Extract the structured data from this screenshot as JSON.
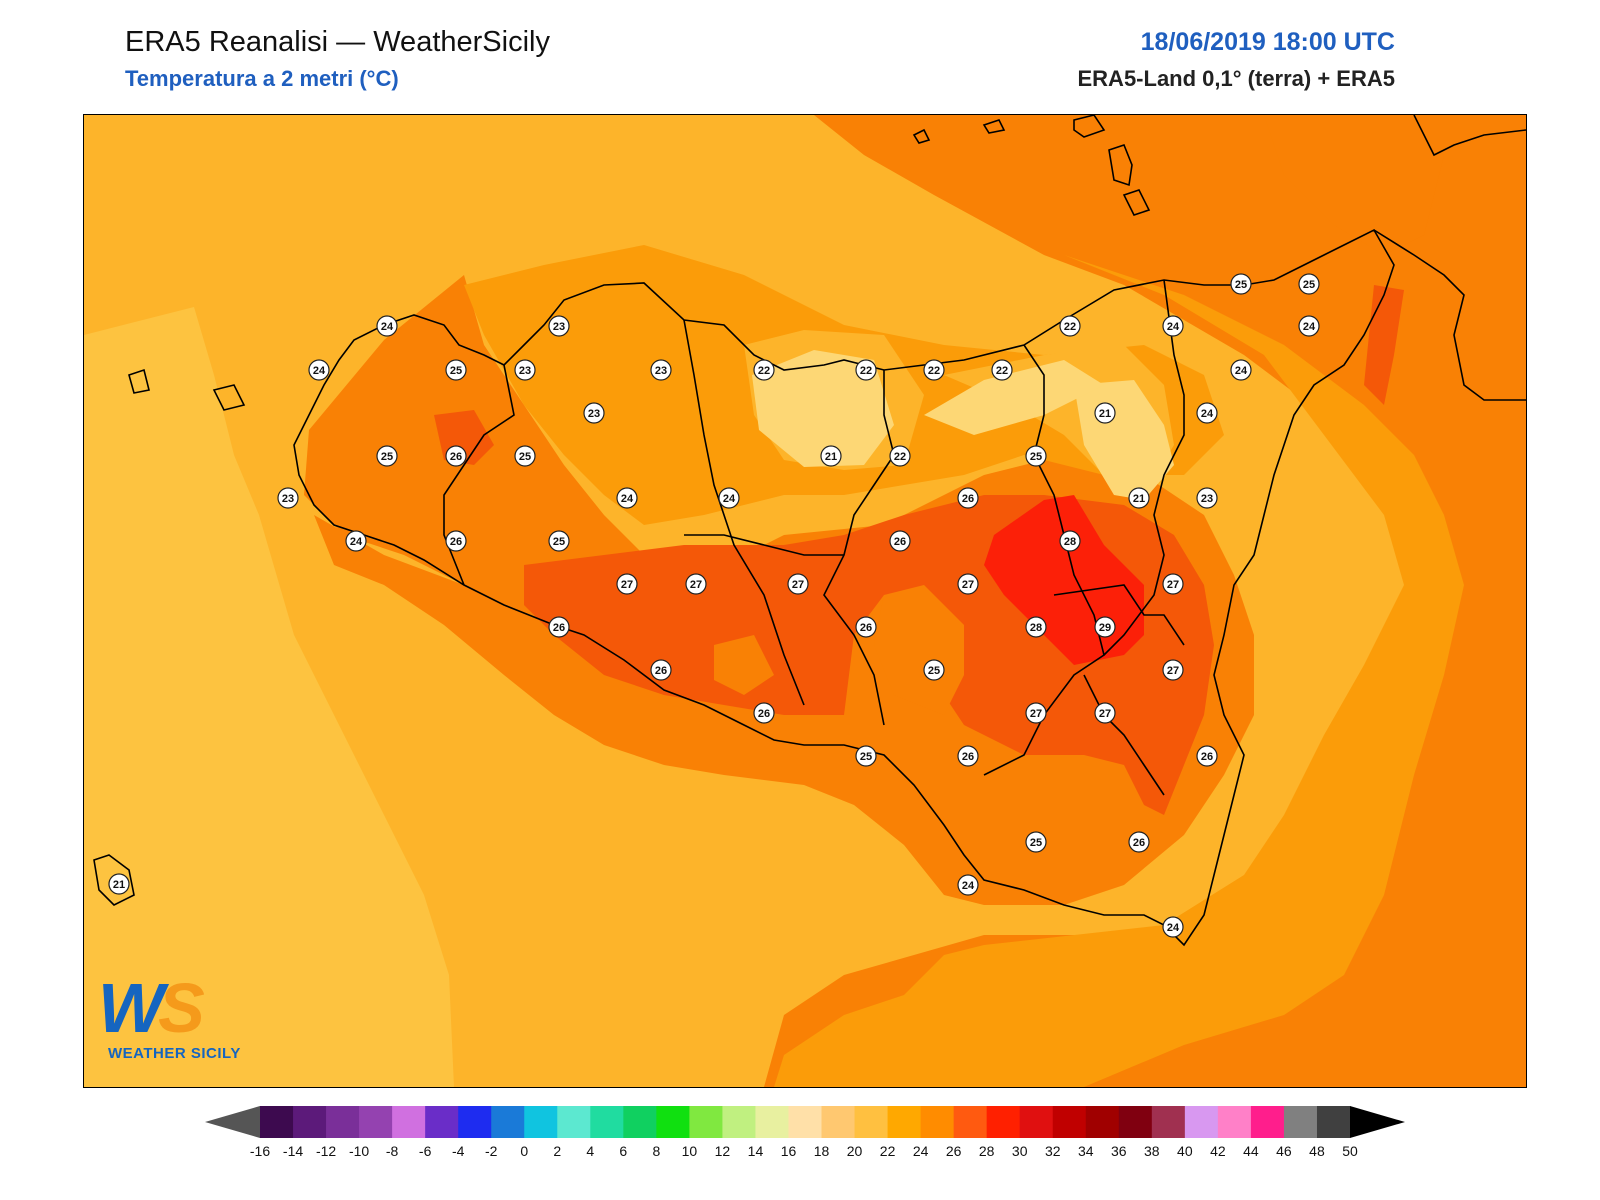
{
  "header": {
    "title": "ERA5 Reanalisi — WeatherSicily",
    "subtitle": "Temperatura a 2 metri (°C)",
    "datetime": "18/06/2019 18:00 UTC",
    "source": "ERA5-Land 0,1° (terra) + ERA5"
  },
  "logo": {
    "ws_w": "W",
    "ws_s": "S",
    "brand": "WEATHER SICILY"
  },
  "colorbar": {
    "ticks": [
      "-16",
      "-14",
      "-12",
      "-10",
      "-8",
      "-6",
      "-4",
      "-2",
      "0",
      "2",
      "4",
      "6",
      "8",
      "10",
      "12",
      "14",
      "16",
      "18",
      "20",
      "22",
      "24",
      "26",
      "28",
      "30",
      "32",
      "34",
      "36",
      "38",
      "40",
      "42",
      "44",
      "46",
      "48",
      "50"
    ],
    "colors": [
      "#3d0a4f",
      "#5c1a7a",
      "#7a2f99",
      "#9442b0",
      "#d070e0",
      "#6a2dc8",
      "#1e2cf0",
      "#1a7ad8",
      "#10c4e0",
      "#5ce8d0",
      "#20dca0",
      "#10d060",
      "#10e010",
      "#80e840",
      "#c0f080",
      "#e8f0a0",
      "#ffe0a8",
      "#ffc870",
      "#ffc040",
      "#ffa800",
      "#ff8c00",
      "#ff5a10",
      "#ff2000",
      "#e01010",
      "#c00000",
      "#a00000",
      "#800010",
      "#a03050",
      "#d898f0",
      "#ff80c8",
      "#ff1e8c",
      "#808080",
      "#404040"
    ],
    "under_color": "#555555",
    "over_color": "#000000"
  },
  "map_colors": {
    "t20": "#fdc340",
    "t22": "#fdb42a",
    "t24": "#fb9c09",
    "t26": "#f98105",
    "t27": "#f45808",
    "t28": "#fc2008",
    "t_cool": "#fdd775"
  },
  "stations": [
    {
      "id": "s1",
      "value": "24"
    },
    {
      "id": "s2",
      "value": "23"
    },
    {
      "id": "s3",
      "value": "24"
    },
    {
      "id": "s4",
      "value": "25"
    },
    {
      "id": "s5",
      "value": "23"
    },
    {
      "id": "s6",
      "value": "23"
    },
    {
      "id": "s7",
      "value": "22"
    },
    {
      "id": "s8",
      "value": "22"
    },
    {
      "id": "s9",
      "value": "22"
    },
    {
      "id": "s10",
      "value": "22"
    },
    {
      "id": "s11",
      "value": "22"
    },
    {
      "id": "s12",
      "value": "24"
    },
    {
      "id": "s13",
      "value": "25"
    },
    {
      "id": "s14",
      "value": "25"
    },
    {
      "id": "s15",
      "value": "24"
    },
    {
      "id": "s16",
      "value": "24"
    },
    {
      "id": "s17",
      "value": "23"
    },
    {
      "id": "s18",
      "value": "25"
    },
    {
      "id": "s19",
      "value": "26"
    },
    {
      "id": "s20",
      "value": "25"
    },
    {
      "id": "s21",
      "value": "21"
    },
    {
      "id": "s22",
      "value": "22"
    },
    {
      "id": "s23",
      "value": "25"
    },
    {
      "id": "s24",
      "value": "21"
    },
    {
      "id": "s25",
      "value": "24"
    },
    {
      "id": "s26",
      "value": "23"
    },
    {
      "id": "s27",
      "value": "24"
    },
    {
      "id": "s28",
      "value": "24"
    },
    {
      "id": "s29",
      "value": "26"
    },
    {
      "id": "s30",
      "value": "21"
    },
    {
      "id": "s31",
      "value": "23"
    },
    {
      "id": "s32",
      "value": "24"
    },
    {
      "id": "s33",
      "value": "26"
    },
    {
      "id": "s34",
      "value": "25"
    },
    {
      "id": "s35",
      "value": "26"
    },
    {
      "id": "s36",
      "value": "28"
    },
    {
      "id": "s37",
      "value": "27"
    },
    {
      "id": "s38",
      "value": "27"
    },
    {
      "id": "s39",
      "value": "27"
    },
    {
      "id": "s40",
      "value": "27"
    },
    {
      "id": "s41",
      "value": "27"
    },
    {
      "id": "s42",
      "value": "26"
    },
    {
      "id": "s43",
      "value": "26"
    },
    {
      "id": "s44",
      "value": "28"
    },
    {
      "id": "s45",
      "value": "29"
    },
    {
      "id": "s46",
      "value": "26"
    },
    {
      "id": "s47",
      "value": "25"
    },
    {
      "id": "s48",
      "value": "27"
    },
    {
      "id": "s49",
      "value": "26"
    },
    {
      "id": "s50",
      "value": "27"
    },
    {
      "id": "s51",
      "value": "27"
    },
    {
      "id": "s52",
      "value": "25"
    },
    {
      "id": "s53",
      "value": "26"
    },
    {
      "id": "s54",
      "value": "26"
    },
    {
      "id": "s55",
      "value": "25"
    },
    {
      "id": "s56",
      "value": "24"
    },
    {
      "id": "s57",
      "value": "26"
    },
    {
      "id": "s58",
      "value": "24"
    },
    {
      "id": "s59",
      "value": "21"
    }
  ]
}
